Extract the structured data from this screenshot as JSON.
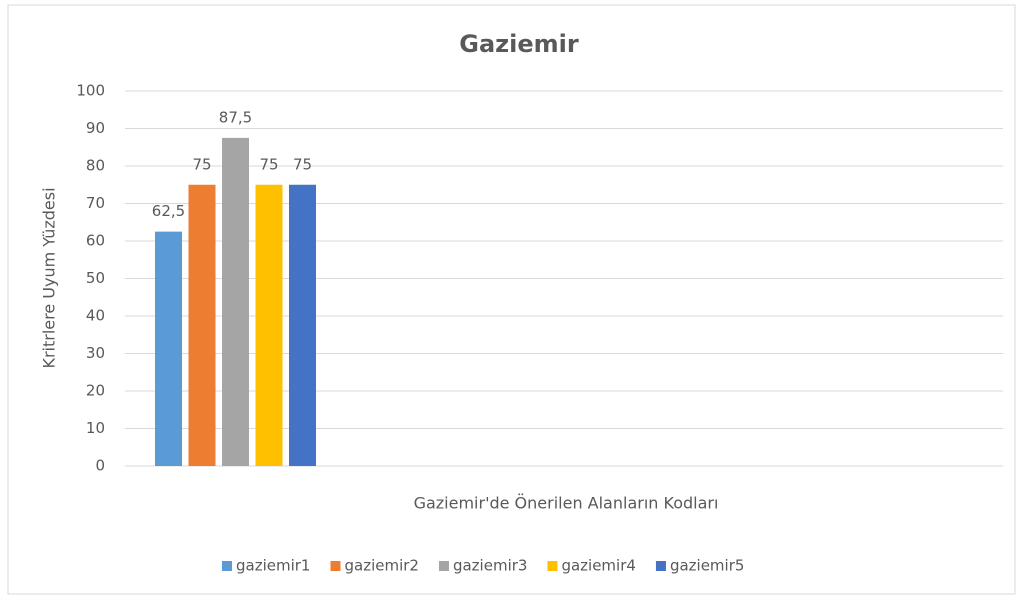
{
  "chart_data": {
    "type": "bar",
    "title": "Gaziemir",
    "x_label": "Gaziemir'de Önerilen Alanların Kodları",
    "y_label": "Kritrlere Uyum Yüzdesi",
    "categories": [
      null
    ],
    "series": [
      {
        "name": "gaziemir1",
        "color": "#5b9bd5",
        "values": [
          62.5
        ],
        "value_labels": [
          "62,5"
        ]
      },
      {
        "name": "gaziemir2",
        "color": "#ed7d31",
        "values": [
          75
        ]
      },
      {
        "name": "gaziemir3",
        "color": "#a5a5a5",
        "values": [
          87.5
        ],
        "value_labels": [
          "87,5"
        ]
      },
      {
        "name": "gaziemir4",
        "color": "#ffc000",
        "values": [
          75
        ]
      },
      {
        "name": "gaziemir5",
        "color": "#4472c4",
        "values": [
          75
        ]
      }
    ],
    "ylim": [
      0,
      100
    ],
    "yticks": [
      0,
      10,
      20,
      30,
      40,
      50,
      60,
      70,
      80,
      90,
      100
    ],
    "grid": true,
    "legend": "bottom"
  }
}
